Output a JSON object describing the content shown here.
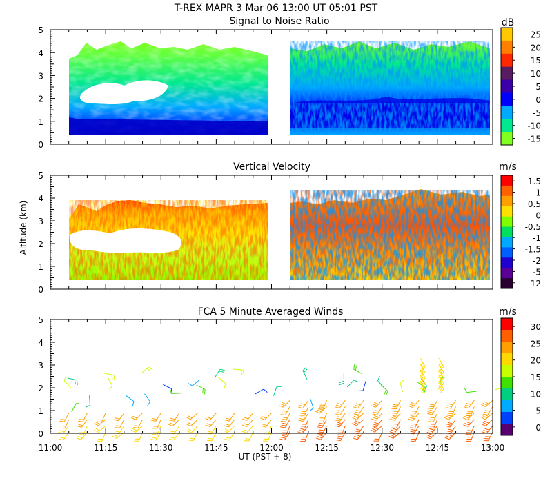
{
  "header": {
    "line1": "T-REX   MAPR   3 Mar 06   13:00 UT   05:01   PST"
  },
  "xaxis": {
    "ticks": [
      "11:00",
      "11:15",
      "11:30",
      "11:45",
      "12:00",
      "12:15",
      "12:30",
      "12:45",
      "13:00"
    ],
    "label": "UT  (PST + 8)"
  },
  "yaxis": {
    "label": "Altitude  (km)",
    "ticks": [
      "0",
      "1",
      "2",
      "3",
      "4",
      "5"
    ]
  },
  "panels": [
    {
      "title": "Signal to Noise Ratio",
      "unit": "dB",
      "colorbar": {
        "labels": [
          "25",
          "20",
          "15",
          "10",
          "5",
          "0",
          "-5",
          "-10",
          "-15"
        ],
        "colors": [
          "#ffc800",
          "#ff8000",
          "#ff2800",
          "#581c60",
          "#3c00a8",
          "#0000ff",
          "#00aaff",
          "#00e890",
          "#80ff20"
        ]
      }
    },
    {
      "title": "Vertical Velocity",
      "unit": "m/s",
      "colorbar": {
        "labels": [
          "1.5",
          "1",
          "0.5",
          "0",
          "-0.5",
          "-1",
          "-1.5",
          "-2",
          "-5",
          "-12"
        ],
        "colors": [
          "#ff0000",
          "#ff6000",
          "#ffa000",
          "#ffe000",
          "#80ff00",
          "#00e060",
          "#00aaff",
          "#0060ff",
          "#2000d0",
          "#5a0096",
          "#2a0030"
        ]
      }
    },
    {
      "title": "FCA 5 Minute Averaged Winds",
      "unit": "m/s",
      "colorbar": {
        "labels": [
          "30",
          "25",
          "20",
          "15",
          "10",
          "5",
          "0"
        ],
        "colors": [
          "#ff0000",
          "#ff6000",
          "#ffa000",
          "#ffd800",
          "#c8ff00",
          "#40e000",
          "#00d080",
          "#00aaff",
          "#0040ff",
          "#580070"
        ]
      }
    }
  ],
  "chart_data": [
    {
      "type": "heatmap",
      "title": "Signal to Noise Ratio",
      "xlabel": "UT  (PST + 8)",
      "ylabel": "",
      "unit": "dB",
      "x_range": [
        "11:00",
        "13:00"
      ],
      "ylim": [
        0,
        5
      ],
      "color_scale": [
        -15,
        -10,
        -5,
        0,
        5,
        10,
        15,
        20,
        25
      ],
      "data_gap": [
        "12:00",
        "12:06"
      ],
      "coverage": {
        "x": [
          "11:05",
          "13:00"
        ],
        "y": [
          0.35,
          4.2
        ]
      }
    },
    {
      "type": "heatmap",
      "title": "Vertical Velocity",
      "xlabel": "UT  (PST + 8)",
      "ylabel": "Altitude  (km)",
      "unit": "m/s",
      "x_range": [
        "11:00",
        "13:00"
      ],
      "ylim": [
        0,
        5
      ],
      "color_scale": [
        -12,
        -5,
        -2,
        -1.5,
        -1,
        -0.5,
        0,
        0.5,
        1,
        1.5
      ],
      "data_gap": [
        "12:00",
        "12:06"
      ],
      "coverage": {
        "x": [
          "11:05",
          "13:00"
        ],
        "y": [
          0.35,
          4.1
        ]
      }
    },
    {
      "type": "scatter",
      "title": "FCA 5 Minute Averaged Winds",
      "xlabel": "UT  (PST + 8)",
      "ylabel": "",
      "unit": "m/s",
      "x_range": [
        "11:00",
        "13:00"
      ],
      "ylim": [
        0,
        5
      ],
      "color_scale": [
        0,
        5,
        10,
        15,
        20,
        25,
        30
      ],
      "wind_barb_times": [
        "11:05",
        "11:10",
        "11:15",
        "11:20",
        "11:25",
        "11:30",
        "11:35",
        "11:40",
        "11:45",
        "11:50",
        "11:55",
        "12:00",
        "12:05",
        "12:10",
        "12:15",
        "12:20",
        "12:25",
        "12:30",
        "12:35",
        "12:40",
        "12:45",
        "12:50",
        "12:55",
        "13:00"
      ]
    }
  ]
}
